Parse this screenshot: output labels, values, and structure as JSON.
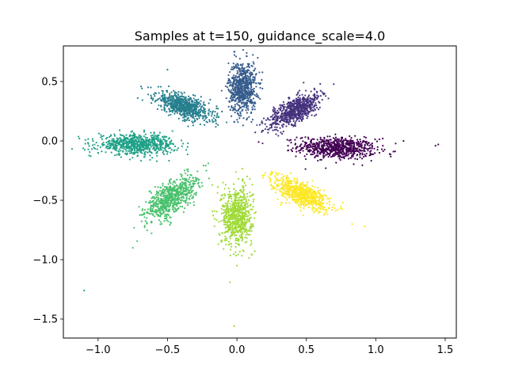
{
  "chart_data": {
    "type": "scatter",
    "title": "Samples at t=150, guidance_scale=4.0",
    "xlabel": "",
    "ylabel": "",
    "xlim": [
      -1.25,
      1.58
    ],
    "ylim": [
      -1.66,
      0.8
    ],
    "xticks": [
      -1.0,
      -0.5,
      0.0,
      0.5,
      1.0,
      1.5
    ],
    "xtick_labels": [
      "−1.0",
      "−0.5",
      "0.0",
      "0.5",
      "1.0",
      "1.5"
    ],
    "yticks": [
      -1.5,
      -1.0,
      -0.5,
      0.0,
      0.5
    ],
    "ytick_labels": [
      "−1.5",
      "−1.0",
      "−0.5",
      "0.0",
      "0.5"
    ],
    "grid": false,
    "legend": "none",
    "colormap": "viridis",
    "series": [
      {
        "color": "#440154",
        "center": [
          0.72,
          -0.06
        ],
        "spread": [
          0.14,
          0.045
        ],
        "angle_deg": -3,
        "outliers": [
          [
            1.2,
            0.0
          ],
          [
            1.45,
            -0.03
          ],
          [
            1.43,
            -0.04
          ],
          [
            1.05,
            0.02
          ],
          [
            1.1,
            -0.11
          ]
        ]
      },
      {
        "color": "#46327e",
        "center": [
          0.42,
          0.26
        ],
        "spread": [
          0.11,
          0.045
        ],
        "angle_deg": 35,
        "outliers": [
          [
            0.6,
            0.48
          ],
          [
            0.25,
            0.12
          ]
        ]
      },
      {
        "color": "#365c8d",
        "center": [
          0.04,
          0.45
        ],
        "spread": [
          0.05,
          0.11
        ],
        "angle_deg": 0,
        "outliers": [
          [
            -0.02,
            0.75
          ],
          [
            0.15,
            0.7
          ]
        ]
      },
      {
        "color": "#277f8e",
        "center": [
          -0.38,
          0.29
        ],
        "spread": [
          0.11,
          0.045
        ],
        "angle_deg": -25,
        "outliers": [
          [
            -0.62,
            0.45
          ],
          [
            -0.5,
            0.6
          ]
        ]
      },
      {
        "color": "#1fa187",
        "center": [
          -0.72,
          -0.03
        ],
        "spread": [
          0.14,
          0.04
        ],
        "angle_deg": 0,
        "outliers": [
          [
            -1.0,
            -0.1
          ],
          [
            -1.1,
            -1.26
          ],
          [
            -0.98,
            0.05
          ]
        ]
      },
      {
        "color": "#4ac16d",
        "center": [
          -0.47,
          -0.48
        ],
        "spread": [
          0.12,
          0.055
        ],
        "angle_deg": 45,
        "outliers": [
          [
            -0.75,
            -0.9
          ],
          [
            -0.22,
            -0.25
          ]
        ]
      },
      {
        "color": "#a0da39",
        "center": [
          0.0,
          -0.63
        ],
        "spread": [
          0.055,
          0.12
        ],
        "angle_deg": 0,
        "outliers": [
          [
            -0.05,
            -1.19
          ],
          [
            -0.02,
            -1.56
          ],
          [
            0.0,
            -1.05
          ]
        ]
      },
      {
        "color": "#fde725",
        "center": [
          0.46,
          -0.44
        ],
        "spread": [
          0.11,
          0.045
        ],
        "angle_deg": -30,
        "outliers": [
          [
            0.92,
            -0.72
          ],
          [
            0.75,
            -0.55
          ],
          [
            0.83,
            -0.7
          ]
        ]
      }
    ]
  }
}
